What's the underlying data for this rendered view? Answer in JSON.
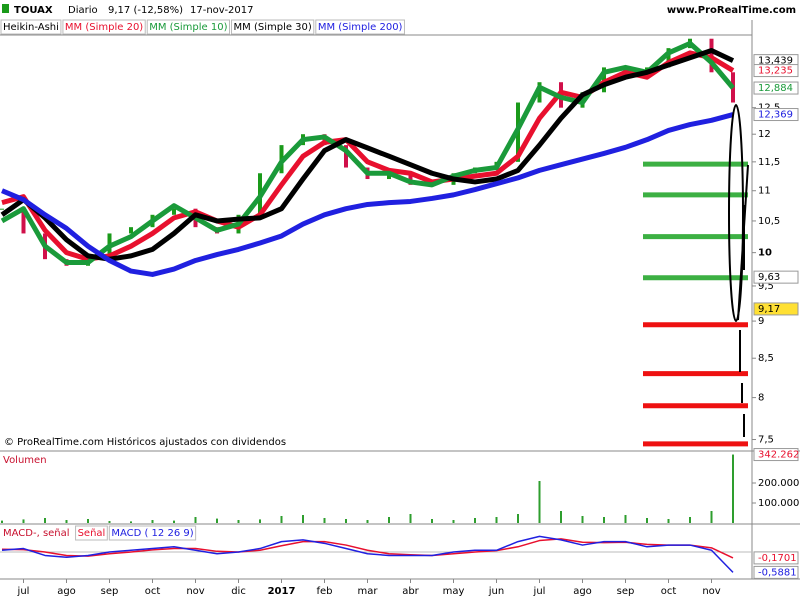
{
  "header": {
    "symbol": "TOUAX",
    "period": "Diario",
    "quote": "9,17 (-12,58%)",
    "date": "17-nov-2017",
    "site": "www.ProRealTime.com"
  },
  "chart_data": [
    {
      "type": "line",
      "log_scale": true,
      "annotation": "© ProRealTime.com  Históricos ajustados con dividendos",
      "categories": [
        null,
        "jul",
        null,
        "ago",
        null,
        "sep",
        null,
        "oct",
        null,
        "nov",
        null,
        "dic",
        null,
        "2017",
        null,
        "feb",
        null,
        "mar",
        null,
        "abr",
        null,
        "may",
        null,
        "jun",
        null,
        "jul",
        null,
        "ago",
        null,
        "sep",
        null,
        "oct",
        null,
        "nov",
        null
      ],
      "ylim": [
        7.38,
        13.98
      ],
      "yticks": [
        {
          "value": 7.5,
          "label": "7,5"
        },
        8,
        {
          "value": 8.5,
          "label": "8,5"
        },
        9,
        {
          "value": 9.5,
          "label": "9,5"
        },
        10,
        {
          "value": 10.5,
          "label": "10,5"
        },
        11,
        {
          "value": 11.5,
          "label": "11,5"
        },
        12,
        {
          "value": 12.5,
          "label": "12,5"
        }
      ],
      "series": [
        {
          "name": "Heikin-Ashi",
          "style": "candles",
          "color": "#1a9a1a",
          "down_color": "#d0104a",
          "values": [
            10.7,
            10.3,
            9.9,
            9.8,
            9.9,
            10.3,
            10.4,
            10.6,
            10.7,
            10.4,
            10.3,
            10.6,
            11.3,
            11.8,
            12.0,
            11.8,
            11.4,
            11.2,
            11.3,
            11.1,
            11.1,
            11.3,
            11.4,
            11.5,
            12.6,
            13.0,
            12.5,
            12.8,
            13.3,
            13.2,
            13.3,
            13.7,
            13.9,
            13.2,
            12.6
          ]
        },
        {
          "name": "MM (Simple 20)",
          "color": "#e8102e",
          "width": 5,
          "values": [
            10.8,
            10.9,
            10.35,
            10.0,
            9.9,
            9.95,
            10.1,
            10.3,
            10.55,
            10.65,
            10.5,
            10.4,
            10.6,
            11.1,
            11.6,
            11.85,
            11.9,
            11.5,
            11.35,
            11.3,
            11.15,
            11.2,
            11.25,
            11.3,
            11.6,
            12.3,
            12.8,
            12.7,
            13.0,
            13.2,
            13.1,
            13.4,
            13.6,
            13.5,
            13.235
          ]
        },
        {
          "name": "MM (Simple 10)",
          "color": "#1a9a3a",
          "width": 5,
          "values": [
            10.5,
            10.7,
            10.1,
            9.85,
            9.85,
            10.1,
            10.25,
            10.5,
            10.75,
            10.55,
            10.35,
            10.45,
            10.9,
            11.5,
            11.9,
            11.95,
            11.7,
            11.3,
            11.3,
            11.15,
            11.1,
            11.25,
            11.35,
            11.4,
            12.1,
            12.9,
            12.7,
            12.6,
            13.2,
            13.3,
            13.2,
            13.6,
            13.8,
            13.4,
            12.884
          ]
        },
        {
          "name": "MM (Simple 30)",
          "color": "#000000",
          "width": 5,
          "values": [
            10.6,
            10.85,
            10.55,
            10.2,
            9.95,
            9.9,
            9.95,
            10.05,
            10.3,
            10.6,
            10.5,
            10.53,
            10.55,
            10.7,
            11.2,
            11.7,
            11.9,
            11.75,
            11.6,
            11.45,
            11.3,
            11.2,
            11.15,
            11.2,
            11.35,
            11.8,
            12.3,
            12.75,
            12.95,
            13.1,
            13.2,
            13.35,
            13.5,
            13.65,
            13.439
          ]
        },
        {
          "name": "MM (Simple 200)",
          "color": "#2020e0",
          "width": 5,
          "values": [
            11.0,
            10.85,
            10.6,
            10.38,
            10.1,
            9.88,
            9.72,
            9.67,
            9.75,
            9.88,
            9.97,
            10.05,
            10.15,
            10.26,
            10.45,
            10.6,
            10.7,
            10.77,
            10.8,
            10.82,
            10.87,
            10.93,
            11.02,
            11.12,
            11.22,
            11.35,
            11.45,
            11.55,
            11.65,
            11.76,
            11.9,
            12.07,
            12.18,
            12.26,
            12.369
          ]
        }
      ],
      "levels": [
        {
          "color": "#3cb043",
          "values": [
            11.46,
            10.93,
            10.25,
            9.62
          ]
        },
        {
          "color": "#ee1111",
          "values": [
            8.95,
            8.3,
            7.9,
            7.45
          ]
        }
      ],
      "price_tags": [
        {
          "value": 13.439,
          "label": "13,439",
          "color": "#000000"
        },
        {
          "value": 13.235,
          "label": "13,235",
          "color": "#e8102e"
        },
        {
          "value": 12.884,
          "label": "12,884",
          "color": "#1a9a3a"
        },
        {
          "value": 12.369,
          "label": "12,369",
          "color": "#2020e0"
        },
        {
          "value": 9.63,
          "label": "9,63",
          "color": "#000000"
        },
        {
          "value": 9.17,
          "label": "9,17",
          "color": "#000000",
          "background": "#ffe033"
        }
      ]
    },
    {
      "type": "bar",
      "title": "Volumen",
      "color": "#2e9e2e",
      "values": [
        12000,
        18000,
        25000,
        15000,
        20000,
        10000,
        8000,
        15000,
        12000,
        30000,
        22000,
        15000,
        18000,
        35000,
        40000,
        25000,
        20000,
        15000,
        30000,
        45000,
        20000,
        15000,
        25000,
        30000,
        45000,
        210000,
        60000,
        35000,
        30000,
        40000,
        25000,
        20000,
        30000,
        60000,
        342262
      ],
      "ylim": [
        0,
        350000
      ],
      "yticks": [
        {
          "value": 100000,
          "label": "100.000"
        },
        {
          "value": 200000,
          "label": "200.000"
        }
      ],
      "price_tags": [
        {
          "value": 342262,
          "label": "342.262",
          "color": "#e8102e"
        }
      ]
    },
    {
      "type": "line",
      "title": "MACD-, señal",
      "ylim": [
        -0.75,
        0.75
      ],
      "series": [
        {
          "name": "Señal",
          "color": "#e8102e",
          "width": 1.5,
          "values": [
            0.08,
            0.07,
            0.0,
            -0.1,
            -0.12,
            -0.05,
            0.0,
            0.06,
            0.1,
            0.1,
            0.02,
            0.0,
            0.05,
            0.18,
            0.3,
            0.3,
            0.2,
            0.05,
            -0.05,
            -0.08,
            -0.1,
            -0.05,
            0.0,
            0.04,
            0.15,
            0.33,
            0.38,
            0.28,
            0.27,
            0.28,
            0.22,
            0.2,
            0.2,
            0.12,
            -0.1701
          ]
        },
        {
          "name": "MACD ( 12 26 9)",
          "color": "#2020e0",
          "width": 1.5,
          "values": [
            0.05,
            0.1,
            -0.1,
            -0.15,
            -0.1,
            0.0,
            0.05,
            0.1,
            0.15,
            0.05,
            -0.05,
            0.0,
            0.1,
            0.3,
            0.35,
            0.25,
            0.1,
            -0.05,
            -0.1,
            -0.1,
            -0.1,
            0.0,
            0.05,
            0.05,
            0.3,
            0.45,
            0.35,
            0.2,
            0.3,
            0.3,
            0.15,
            0.2,
            0.2,
            0.05,
            -0.5881
          ]
        }
      ],
      "price_tags": [
        {
          "value": -0.1701,
          "label": "-0,1701",
          "color": "#e8102e"
        },
        {
          "value": -0.5881,
          "label": "-0,5881",
          "color": "#2020e0"
        }
      ]
    }
  ]
}
